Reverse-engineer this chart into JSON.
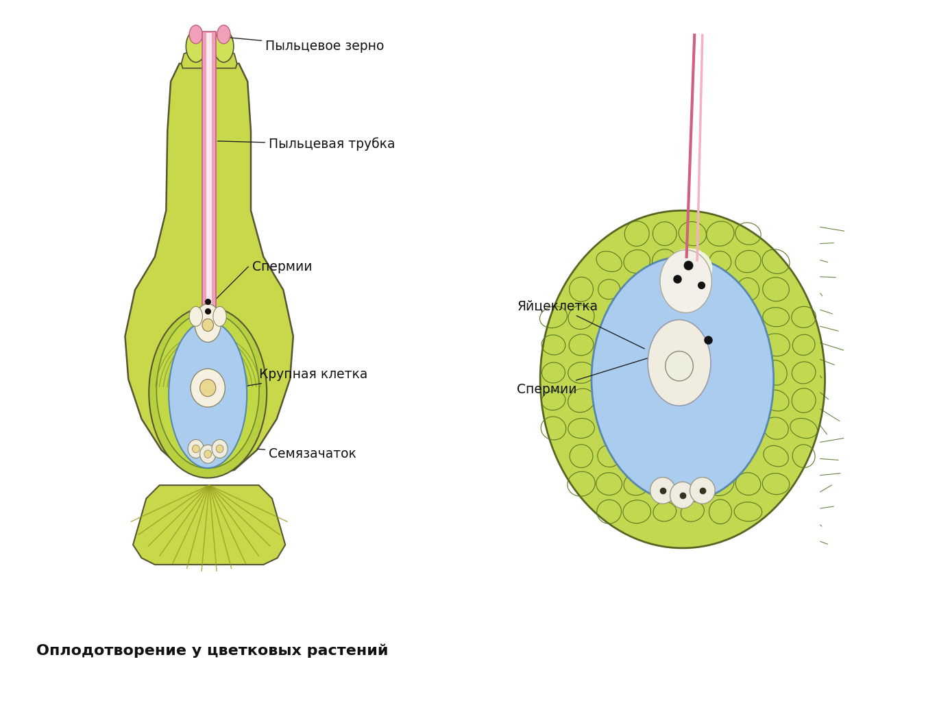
{
  "title": "Оплодотворение у цветковых растений",
  "title_fontsize": 16,
  "title_bold": true,
  "background_color": "#ffffff",
  "labels": {
    "pyltsevoe_zerno": "Пыльцевое зерно",
    "pyltsevaya_trubka": "Пыльцевая трубка",
    "spermii_left": "Спермии",
    "yaytskletka": "Яйцеклетка",
    "spermii_right": "Спермии",
    "krupnaya_kletka": "Крупная клетка",
    "semyazachatok": "Семязачаток"
  },
  "colors": {
    "pistil_green": "#c8d84a",
    "pistil_green_dark": "#a8b830",
    "pistil_edge": "#555533",
    "tube_pink": "#e87090",
    "tube_pink_light": "#f5b8c8",
    "embryo_sac_blue": "#aaccee",
    "embryo_sac_edge": "#5588aa",
    "cell_fill": "#f5f0e0",
    "cell_edge": "#888866",
    "nucleus_fill": "#e8d890",
    "sperm_dot": "#111111",
    "right_green": "#b8d448",
    "right_green_edge": "#6a8830",
    "line_color": "#222222",
    "antipodal_fill": "#f0ede0"
  }
}
